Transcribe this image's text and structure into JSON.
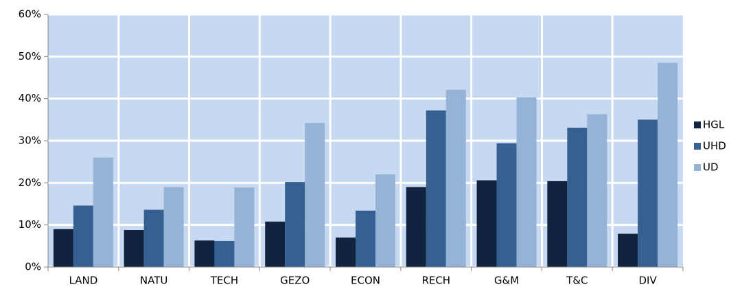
{
  "chart_data": {
    "type": "bar",
    "categories": [
      "LAND",
      "NATU",
      "TECH",
      "GEZO",
      "ECON",
      "RECH",
      "G&M",
      "T&C",
      "DIV"
    ],
    "series": [
      {
        "name": "HGL",
        "color": "#10243f",
        "values": [
          9,
          8.8,
          6.3,
          10.8,
          7,
          19,
          20.6,
          20.4,
          7.9
        ]
      },
      {
        "name": "UHD",
        "color": "#376092",
        "values": [
          14.6,
          13.6,
          6.2,
          20.2,
          13.4,
          37.2,
          29.4,
          33.1,
          35
        ]
      },
      {
        "name": "UD",
        "color": "#95b3d7",
        "values": [
          26,
          19,
          18.9,
          34.2,
          22,
          42.1,
          40.3,
          36.3,
          48.5
        ]
      }
    ],
    "ylim": [
      0,
      60
    ],
    "yticks": [
      {
        "value": 0,
        "label": "0%"
      },
      {
        "value": 10,
        "label": "10%"
      },
      {
        "value": 20,
        "label": "20%"
      },
      {
        "value": 30,
        "label": "30%"
      },
      {
        "value": 40,
        "label": "40%"
      },
      {
        "value": 50,
        "label": "50%"
      },
      {
        "value": 60,
        "label": "60%"
      }
    ],
    "grid": true,
    "legend": "right"
  }
}
